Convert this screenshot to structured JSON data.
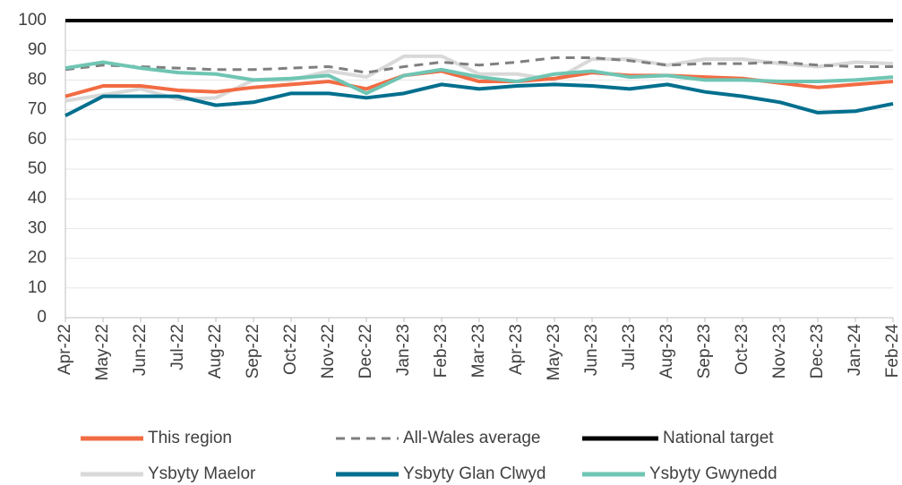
{
  "chart_data": {
    "type": "line",
    "categories": [
      "Apr-22",
      "May-22",
      "Jun-22",
      "Jul-22",
      "Aug-22",
      "Sep-22",
      "Oct-22",
      "Nov-22",
      "Dec-22",
      "Jan-23",
      "Feb-23",
      "Mar-23",
      "Apr-23",
      "May-23",
      "Jun-23",
      "Jul-23",
      "Aug-23",
      "Sep-23",
      "Oct-23",
      "Nov-23",
      "Dec-23",
      "Jan-24",
      "Feb-24"
    ],
    "ylim": [
      0,
      100
    ],
    "yticks": [
      0,
      10,
      20,
      30,
      40,
      50,
      60,
      70,
      80,
      90,
      100
    ],
    "grid": true,
    "series": [
      {
        "name": "Ysbyty Maelor",
        "color": "#d9d9d9",
        "values": [
          73,
          75,
          77,
          73.5,
          74,
          80,
          80,
          83,
          81,
          88,
          88,
          82,
          82,
          80,
          87,
          87,
          85,
          87,
          87,
          85.5,
          84.5,
          86,
          85.5
        ]
      },
      {
        "name": "All-Wales average",
        "color": "#7f7f7f",
        "dash": true,
        "values": [
          83.5,
          85,
          84.5,
          84,
          83.5,
          83.5,
          84,
          84.5,
          82.5,
          84.5,
          86,
          85,
          86,
          87.5,
          87.5,
          86.5,
          85,
          85.5,
          85.5,
          86,
          85,
          84.5,
          84.5
        ]
      },
      {
        "name": "This region",
        "color": "#f26b43",
        "values": [
          74.5,
          78,
          78,
          76.5,
          76,
          77.5,
          78.5,
          79.5,
          77,
          81.5,
          83,
          79.5,
          79.5,
          80.5,
          82.5,
          81.5,
          81.5,
          81,
          80.5,
          79,
          77.5,
          78.5,
          79.5
        ]
      },
      {
        "name": "Ysbyty Glan Clwyd",
        "color": "#006f8e",
        "values": [
          68,
          74.5,
          74.5,
          74.5,
          71.5,
          72.5,
          75.5,
          75.5,
          74,
          75.5,
          78.5,
          77,
          78,
          78.5,
          78,
          77,
          78.5,
          76,
          74.5,
          72.5,
          69,
          69.5,
          72
        ]
      },
      {
        "name": "Ysbyty Gwynedd",
        "color": "#6fc5b3",
        "values": [
          84,
          86,
          84,
          82.5,
          82,
          80,
          80.5,
          81.5,
          75.5,
          81.5,
          83.5,
          81,
          79.5,
          82,
          83,
          81,
          81.5,
          80,
          80,
          79.5,
          79.5,
          80,
          81
        ]
      },
      {
        "name": "National target",
        "color": "#000000",
        "values": [
          100,
          100,
          100,
          100,
          100,
          100,
          100,
          100,
          100,
          100,
          100,
          100,
          100,
          100,
          100,
          100,
          100,
          100,
          100,
          100,
          100,
          100,
          100
        ]
      }
    ],
    "legend_order": [
      2,
      1,
      5,
      0,
      3,
      4
    ]
  }
}
